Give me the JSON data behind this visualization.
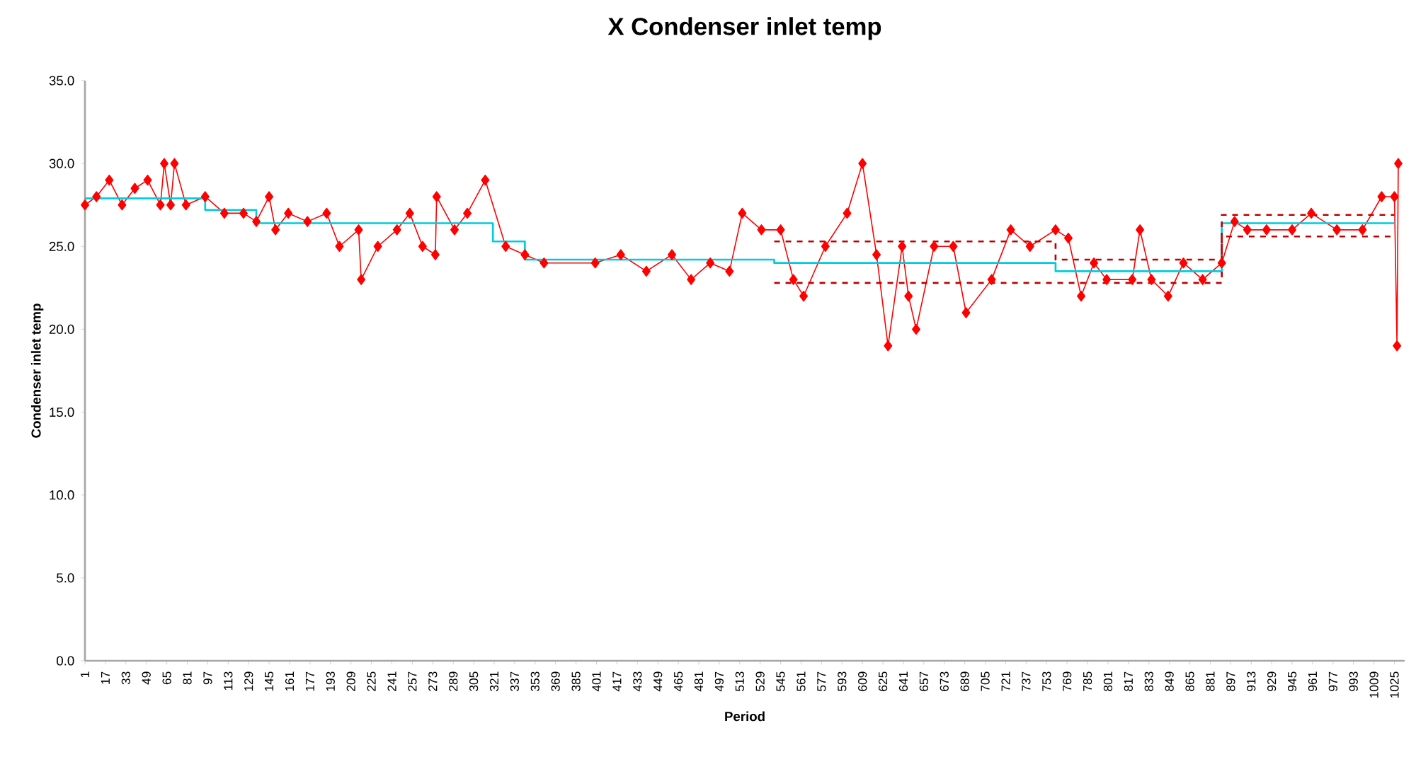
{
  "chart_data": {
    "type": "line",
    "title": "X Condenser inlet temp",
    "xlabel": "Period",
    "ylabel": "Condenser inlet temp",
    "xlim": [
      1,
      1033
    ],
    "ylim": [
      0,
      35
    ],
    "xticks": [
      1,
      17,
      33,
      49,
      65,
      81,
      97,
      113,
      129,
      145,
      161,
      177,
      193,
      209,
      225,
      241,
      257,
      273,
      289,
      305,
      321,
      337,
      353,
      369,
      385,
      401,
      417,
      433,
      449,
      465,
      481,
      497,
      513,
      529,
      545,
      561,
      577,
      593,
      609,
      625,
      641,
      657,
      673,
      689,
      705,
      721,
      737,
      753,
      769,
      785,
      801,
      817,
      833,
      849,
      865,
      881,
      897,
      913,
      929,
      945,
      961,
      977,
      993,
      1009,
      1025
    ],
    "yticks": [
      {
        "value": 0,
        "label": "0.0"
      },
      {
        "value": 5,
        "label": "5.0"
      },
      {
        "value": 10,
        "label": "10.0"
      },
      {
        "value": 15,
        "label": "15.0"
      },
      {
        "value": 20,
        "label": "20.0"
      },
      {
        "value": 25,
        "label": "25.0"
      },
      {
        "value": 30,
        "label": "30.0"
      },
      {
        "value": 35,
        "label": "35.0"
      }
    ],
    "marker": "diamond",
    "series": [
      {
        "color": "#ff0000",
        "x": [
          1,
          10,
          20,
          30,
          40,
          50,
          60,
          63,
          68,
          71,
          80,
          95,
          110,
          125,
          135,
          145,
          150,
          160,
          175,
          190,
          200,
          215,
          217,
          230,
          245,
          255,
          265,
          275,
          276,
          290,
          300,
          314,
          330,
          345,
          360,
          400,
          420,
          440,
          460,
          475,
          490,
          505,
          515,
          530,
          545,
          555,
          563,
          580,
          597,
          609,
          620,
          629,
          640,
          645,
          651,
          665,
          680,
          690,
          710,
          725,
          740,
          760,
          770,
          780,
          790,
          800,
          820,
          826,
          835,
          848,
          860,
          875,
          890,
          900,
          910,
          925,
          945,
          960,
          980,
          1000,
          1015,
          1025,
          1027,
          1028
        ],
        "values": [
          27.5,
          28,
          29,
          27.5,
          28.5,
          29,
          27.5,
          30,
          27.5,
          30,
          27.5,
          28,
          27,
          27,
          26.5,
          28,
          26,
          27,
          26.5,
          27,
          25,
          26,
          23,
          25,
          26,
          27,
          25,
          24.5,
          28,
          26,
          27,
          29,
          25,
          24.5,
          24,
          24,
          24.5,
          23.5,
          24.5,
          23,
          24,
          23.5,
          27,
          26,
          26,
          23,
          22,
          25,
          27,
          30,
          24.5,
          19,
          25,
          22,
          20,
          25,
          25,
          21,
          23,
          26,
          25,
          26,
          25.5,
          22,
          24,
          23,
          23,
          26,
          23,
          22,
          24,
          23,
          24,
          26.5,
          26,
          26,
          26,
          27,
          26,
          26,
          28,
          28,
          19,
          30
        ]
      },
      {
        "color": "#00ccdd",
        "marker": "none",
        "x": [
          1,
          95,
          95,
          135,
          135,
          320,
          320,
          345,
          345,
          540,
          540,
          760,
          760,
          890,
          890,
          1025
        ],
        "values": [
          27.9,
          27.9,
          27.2,
          27.2,
          26.4,
          26.4,
          25.3,
          25.3,
          24.2,
          24.2,
          24,
          24,
          23.5,
          23.5,
          26.4,
          26.4
        ]
      },
      {
        "color": "#c00000",
        "marker": "none",
        "line_style": "dashed",
        "x": [
          540,
          760,
          760,
          890,
          890,
          1025
        ],
        "values": [
          25.3,
          25.3,
          24.2,
          24.2,
          26.9,
          26.9
        ]
      },
      {
        "color": "#c00000",
        "marker": "none",
        "line_style": "dashed",
        "x": [
          540,
          760,
          760,
          890,
          890,
          1025
        ],
        "values": [
          22.8,
          22.8,
          22.8,
          22.8,
          25.6,
          25.6
        ]
      }
    ]
  }
}
